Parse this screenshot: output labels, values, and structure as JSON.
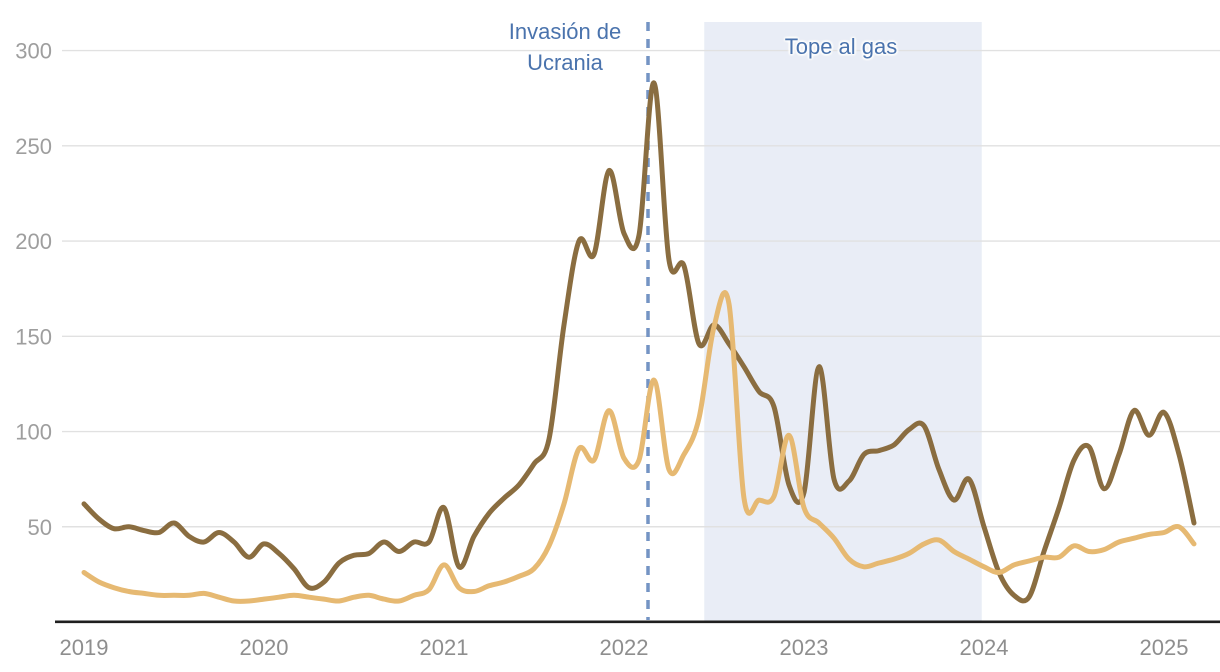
{
  "chart_data": {
    "type": "line",
    "title": "",
    "x_tick_labels": [
      "2019",
      "2020",
      "2021",
      "2022",
      "2023",
      "2024",
      "2025"
    ],
    "x_tick_month_indices": [
      0,
      12,
      24,
      36,
      48,
      60,
      72
    ],
    "x_monthly_start": "2019-01",
    "x_monthly_end": "2025-03",
    "y_ticks": [
      50,
      100,
      150,
      200,
      250,
      300
    ],
    "ylim": [
      0,
      315
    ],
    "grid": "horizontal-only",
    "legend": "none",
    "series": [
      {
        "name": "dark_line",
        "color": "#8a6d40",
        "values": [
          62,
          54,
          49,
          50,
          48,
          47,
          52,
          45,
          42,
          47,
          42,
          34,
          41,
          36,
          28,
          18,
          21,
          31,
          35,
          36,
          42,
          37,
          42,
          42,
          60,
          29,
          45,
          57,
          65,
          72,
          83,
          96,
          156,
          200,
          193,
          237,
          204,
          203,
          283,
          190,
          187,
          146,
          156,
          146,
          134,
          121,
          113,
          72,
          68,
          134,
          75,
          74,
          88,
          90,
          93,
          101,
          103,
          80,
          64,
          75,
          50,
          26,
          14,
          13,
          37,
          60,
          85,
          92,
          70,
          88,
          111,
          98,
          110,
          88,
          52
        ]
      },
      {
        "name": "light_line",
        "color": "#e6b972",
        "values": [
          26,
          21,
          18,
          16,
          15,
          14,
          14,
          14,
          15,
          13,
          11,
          11,
          12,
          13,
          14,
          13,
          12,
          11,
          13,
          14,
          12,
          11,
          14,
          17,
          30,
          18,
          16,
          19,
          21,
          24,
          28,
          40,
          62,
          91,
          85,
          111,
          86,
          85,
          127,
          80,
          88,
          107,
          155,
          167,
          65,
          64,
          66,
          98,
          60,
          52,
          44,
          33,
          29,
          31,
          33,
          36,
          41,
          43,
          37,
          33,
          29,
          26,
          30,
          32,
          34,
          34,
          40,
          37,
          38,
          42,
          44,
          46,
          47,
          50,
          41
        ]
      }
    ],
    "annotations": {
      "vline": {
        "label_lines": [
          "Invasión de",
          "Ucrania"
        ],
        "date": "2022-02",
        "month_index": 37.6,
        "color": "#7494c4",
        "style": "dashed"
      },
      "region": {
        "label": "Tope al gas",
        "from": "2022-06",
        "to": "2023-12",
        "from_month_index": 41.35,
        "to_month_index": 59.85,
        "fill": "#e9edf6"
      }
    },
    "axis_colors": {
      "y_tick_label": "#9e9e9e",
      "x_tick_label": "#8e8e8e",
      "gridline": "#e1e1e1",
      "baseline": "#1f1f1f"
    }
  }
}
